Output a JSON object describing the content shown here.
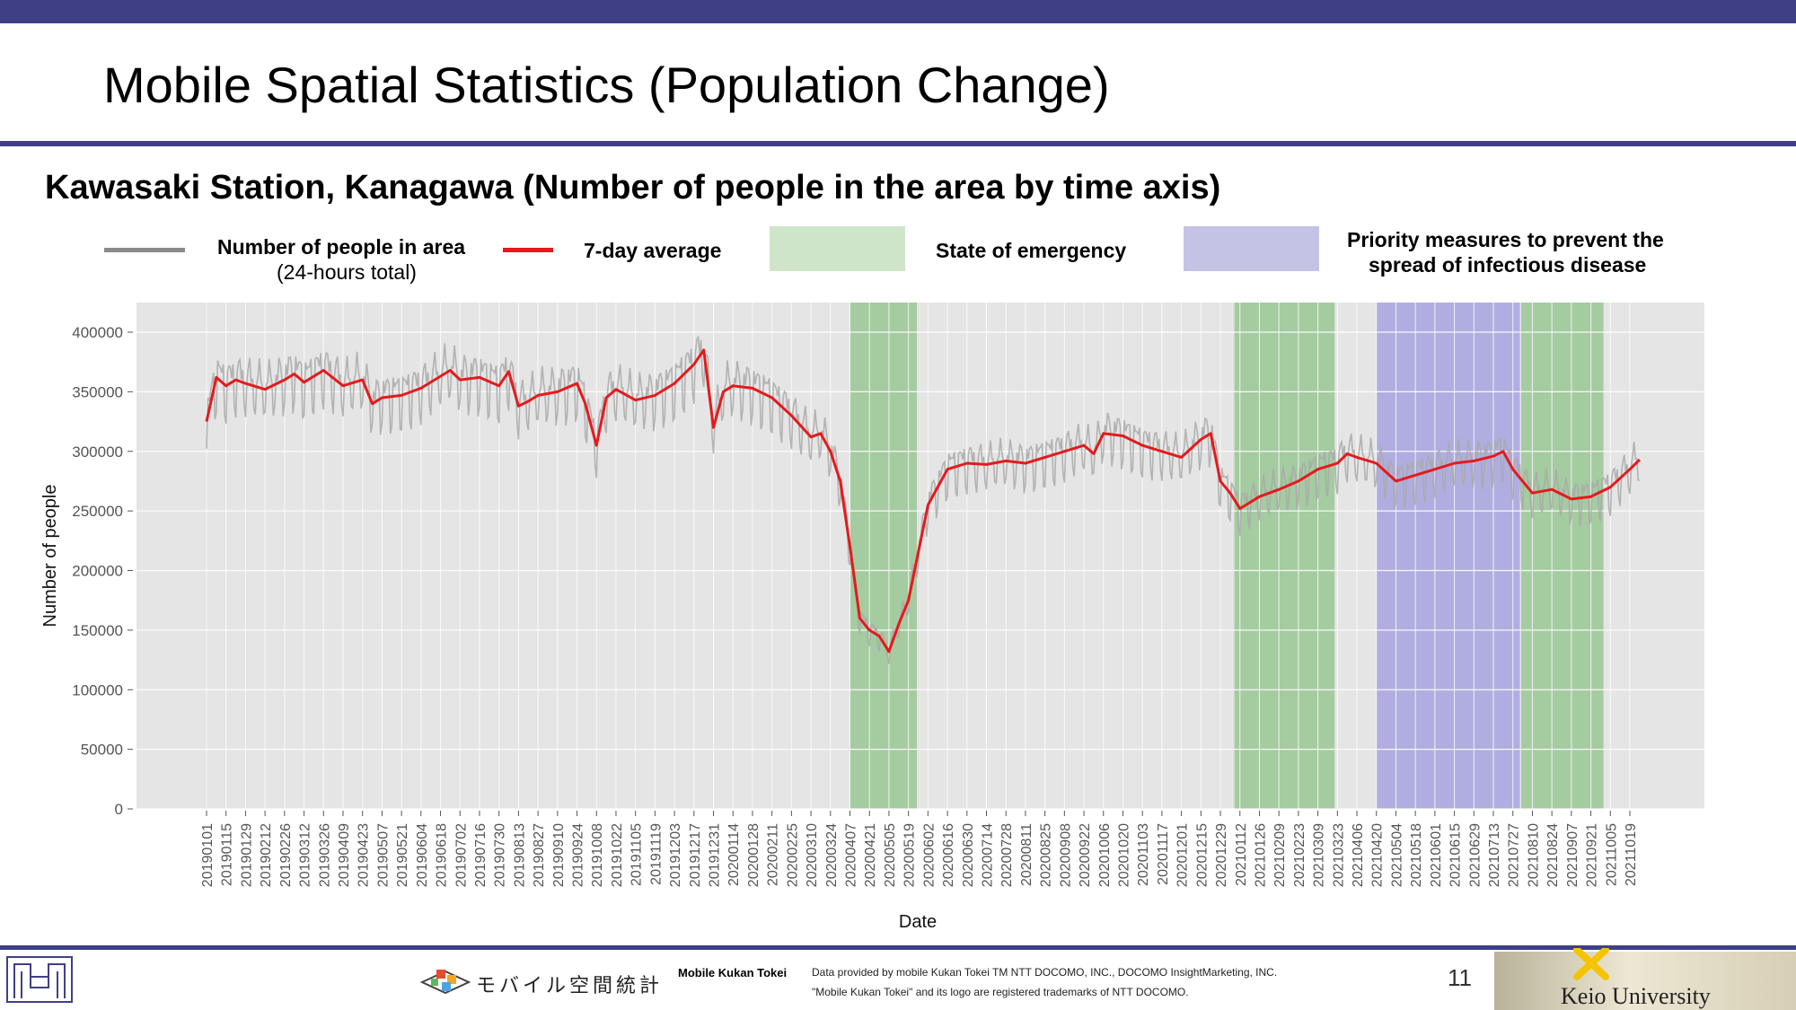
{
  "title": "Mobile Spatial Statistics (Population Change)",
  "subtitle": "Kawasaki Station, Kanagawa (Number of people in the area by time axis)",
  "legend": {
    "people_line1": "Number of people in area",
    "people_line2": "(24-hours total)",
    "avg": "7-day average",
    "emergency": "State of emergency",
    "priority_line1": "Priority measures to prevent the",
    "priority_line2": "spread of infectious disease"
  },
  "footer": {
    "mobile_logo_text": "モバイル空間統計",
    "brand": "Mobile Kukan Tokei",
    "note_line1": "Data provided by mobile Kukan Tokei TM NTT DOCOMO, INC., DOCOMO InsightMarketing, INC.",
    "note_line2": "\"Mobile Kukan Tokei\" and its logo are registered trademarks of NTT DOCOMO.",
    "page_number": "11",
    "university": "Keio University"
  },
  "colors": {
    "accent": "#3f3f86",
    "raw_series": "#a9a9a9",
    "avg_series": "#e41a1c",
    "emergency": "#8fc28a",
    "priority": "#9d9bdd",
    "plot_bg": "#e5e5e5"
  },
  "chart_data": {
    "type": "line",
    "xlabel": "Date",
    "ylabel": "Number of people",
    "ylim": [
      0,
      425000
    ],
    "yticks": [
      0,
      50000,
      100000,
      150000,
      200000,
      250000,
      300000,
      350000,
      400000
    ],
    "grid": true,
    "x_tick_labels": [
      "20190101",
      "20190115",
      "20190129",
      "20190212",
      "20190226",
      "20190312",
      "20190326",
      "20190409",
      "20190423",
      "20190507",
      "20190521",
      "20190604",
      "20190618",
      "20190702",
      "20190716",
      "20190730",
      "20190813",
      "20190827",
      "20190910",
      "20190924",
      "20191008",
      "20191022",
      "20191105",
      "20191119",
      "20191203",
      "20191217",
      "20191231",
      "20200114",
      "20200128",
      "20200211",
      "20200225",
      "20200310",
      "20200324",
      "20200407",
      "20200421",
      "20200505",
      "20200519",
      "20200602",
      "20200616",
      "20200630",
      "20200714",
      "20200728",
      "20200811",
      "20200825",
      "20200908",
      "20200922",
      "20201006",
      "20201020",
      "20201103",
      "20201117",
      "20201201",
      "20201215",
      "20201229",
      "20210112",
      "20210126",
      "20210209",
      "20210223",
      "20210309",
      "20210323",
      "20210406",
      "20210420",
      "20210504",
      "20210518",
      "20210601",
      "20210615",
      "20210629",
      "20210713",
      "20210727",
      "20210810",
      "20210824",
      "20210907",
      "20210921",
      "20211005",
      "20211019"
    ],
    "shaded_periods": [
      {
        "type": "emergency",
        "start": "20200407",
        "end": "20200525"
      },
      {
        "type": "emergency",
        "start": "20210108",
        "end": "20210321"
      },
      {
        "type": "priority",
        "start": "20210420",
        "end": "20210801"
      },
      {
        "type": "emergency",
        "start": "20210802",
        "end": "20210930"
      }
    ],
    "series": [
      {
        "name": "7-day average",
        "x": [
          "20190101",
          "20190108",
          "20190115",
          "20190122",
          "20190129",
          "20190212",
          "20190226",
          "20190305",
          "20190312",
          "20190326",
          "20190409",
          "20190423",
          "20190430",
          "20190507",
          "20190521",
          "20190604",
          "20190618",
          "20190625",
          "20190702",
          "20190716",
          "20190730",
          "20190806",
          "20190813",
          "20190820",
          "20190827",
          "20190910",
          "20190924",
          "20190930",
          "20191008",
          "20191015",
          "20191022",
          "20191105",
          "20191119",
          "20191203",
          "20191217",
          "20191224",
          "20191231",
          "20200107",
          "20200114",
          "20200128",
          "20200211",
          "20200225",
          "20200310",
          "20200317",
          "20200324",
          "20200331",
          "20200407",
          "20200414",
          "20200421",
          "20200428",
          "20200505",
          "20200512",
          "20200519",
          "20200526",
          "20200602",
          "20200609",
          "20200616",
          "20200630",
          "20200714",
          "20200728",
          "20200811",
          "20200825",
          "20200908",
          "20200922",
          "20200929",
          "20201006",
          "20201020",
          "20201103",
          "20201117",
          "20201201",
          "20201215",
          "20201222",
          "20201229",
          "20210105",
          "20210112",
          "20210126",
          "20210209",
          "20210223",
          "20210309",
          "20210323",
          "20210330",
          "20210406",
          "20210420",
          "20210504",
          "20210518",
          "20210601",
          "20210615",
          "20210629",
          "20210713",
          "20210720",
          "20210727",
          "20210810",
          "20210824",
          "20210907",
          "20210921",
          "20211005",
          "20211019",
          "20211026"
        ],
        "values": [
          325000,
          362000,
          355000,
          360000,
          357000,
          352000,
          360000,
          365000,
          358000,
          368000,
          355000,
          360000,
          340000,
          345000,
          347000,
          353000,
          363000,
          368000,
          360000,
          362000,
          355000,
          367000,
          338000,
          342000,
          347000,
          350000,
          357000,
          340000,
          305000,
          345000,
          352000,
          343000,
          347000,
          357000,
          373000,
          385000,
          320000,
          350000,
          355000,
          353000,
          345000,
          330000,
          312000,
          315000,
          300000,
          275000,
          220000,
          160000,
          150000,
          145000,
          132000,
          155000,
          175000,
          215000,
          255000,
          270000,
          285000,
          290000,
          289000,
          292000,
          290000,
          295000,
          300000,
          305000,
          298000,
          315000,
          313000,
          305000,
          300000,
          295000,
          310000,
          315000,
          275000,
          265000,
          252000,
          262000,
          268000,
          275000,
          285000,
          290000,
          298000,
          295000,
          290000,
          275000,
          280000,
          285000,
          290000,
          292000,
          296000,
          300000,
          285000,
          265000,
          268000,
          260000,
          262000,
          270000,
          285000,
          293000
        ]
      },
      {
        "name": "Number of people in area (24-hours total)",
        "x": [],
        "values": []
      }
    ]
  }
}
